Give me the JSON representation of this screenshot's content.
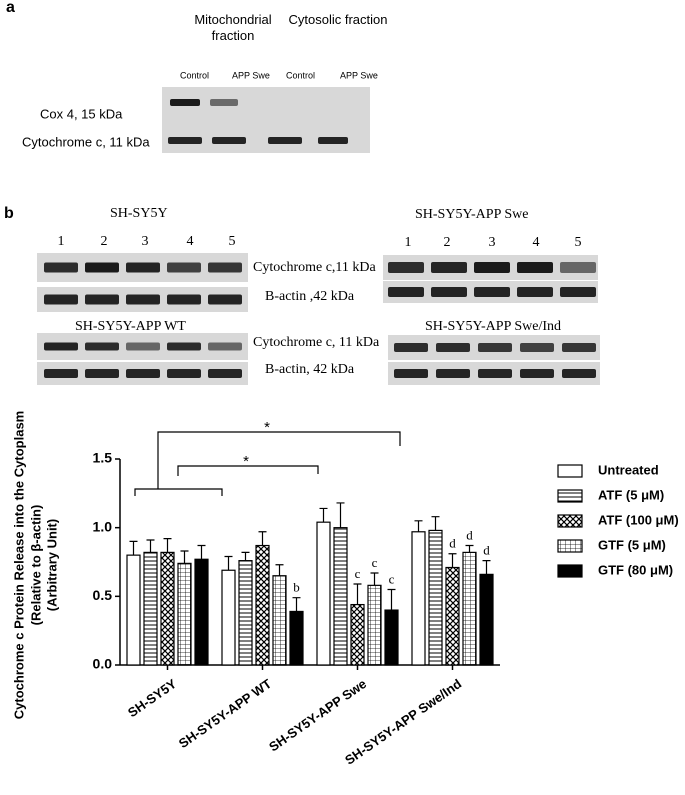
{
  "panel_a": {
    "label": "a",
    "fractions": [
      "Mitochondrial fraction",
      "Cytosolic fraction"
    ],
    "lanes": [
      "Control",
      "APP Swe",
      "Control",
      "APP Swe"
    ],
    "bands": [
      "Cox 4, 15 kDa",
      "Cytochrome c, 11 kDa"
    ]
  },
  "panel_b": {
    "label": "b",
    "blots": [
      {
        "title": "SH-SY5Y",
        "lanes": [
          "1",
          "2",
          "3",
          "4",
          "5"
        ]
      },
      {
        "title": "SH-SY5Y-APP  Swe",
        "lanes": [
          "1",
          "2",
          "3",
          "4",
          "5"
        ]
      },
      {
        "title": "SH-SY5Y-APP  WT"
      },
      {
        "title": "SH-SY5Y-APP  Swe/Ind"
      }
    ],
    "band_labels": [
      "Cytochrome c,11 kDa",
      "B-actin ,42 kDa",
      "Cytochrome c, 11 kDa",
      "B-actin, 42 kDa"
    ]
  },
  "chart_data": {
    "type": "bar",
    "ylabel": [
      "Cytochrome c Protein Release into the Cytoplasm",
      "(Relative to β-actin)",
      "(Arbitrary Unit)"
    ],
    "categories": [
      "SH-SY5Y",
      "SH-SY5Y-APP WT",
      "SH-SY5Y-APP Swe",
      "SH-SY5Y-APP Swe/Ind"
    ],
    "ylim": [
      0,
      1.5
    ],
    "yticks": [
      {
        "value": 0,
        "label": "0.0"
      },
      0.5,
      {
        "value": 1,
        "label": "1.0"
      },
      1.5
    ],
    "legend": "right",
    "series": [
      {
        "name": "Untreated",
        "color": "#000000",
        "pattern": "none",
        "values": [
          0.8,
          0.69,
          1.04,
          0.97
        ],
        "errors": [
          0.1,
          0.1,
          0.1,
          0.08
        ],
        "letters": [
          null,
          null,
          null,
          null
        ]
      },
      {
        "name": "ATF (5 μM)",
        "color": "#000000",
        "pattern": "horizontal",
        "values": [
          0.82,
          0.76,
          1.0,
          0.98
        ],
        "errors": [
          0.09,
          0.06,
          0.18,
          0.1
        ],
        "letters": [
          null,
          null,
          null,
          null
        ]
      },
      {
        "name": "ATF (100 μM)",
        "color": "#000000",
        "pattern": "crosshatch",
        "values": [
          0.82,
          0.87,
          0.44,
          0.71
        ],
        "errors": [
          0.1,
          0.1,
          0.15,
          0.1
        ],
        "letters": [
          null,
          null,
          "c",
          "d"
        ]
      },
      {
        "name": "GTF (5 μM)",
        "color": "#000000",
        "pattern": "grid",
        "values": [
          0.74,
          0.65,
          0.58,
          0.82
        ],
        "errors": [
          0.09,
          0.08,
          0.09,
          0.05
        ],
        "letters": [
          null,
          null,
          "c",
          "d"
        ]
      },
      {
        "name": "GTF (80 μM)",
        "color": "#000000",
        "pattern": "solid",
        "values": [
          0.77,
          0.39,
          0.4,
          0.66
        ],
        "errors": [
          0.1,
          0.1,
          0.15,
          0.1
        ],
        "letters": [
          null,
          "b",
          "c",
          "d"
        ]
      }
    ],
    "brackets": [
      {
        "label": "*"
      },
      {
        "label": "*"
      }
    ]
  }
}
